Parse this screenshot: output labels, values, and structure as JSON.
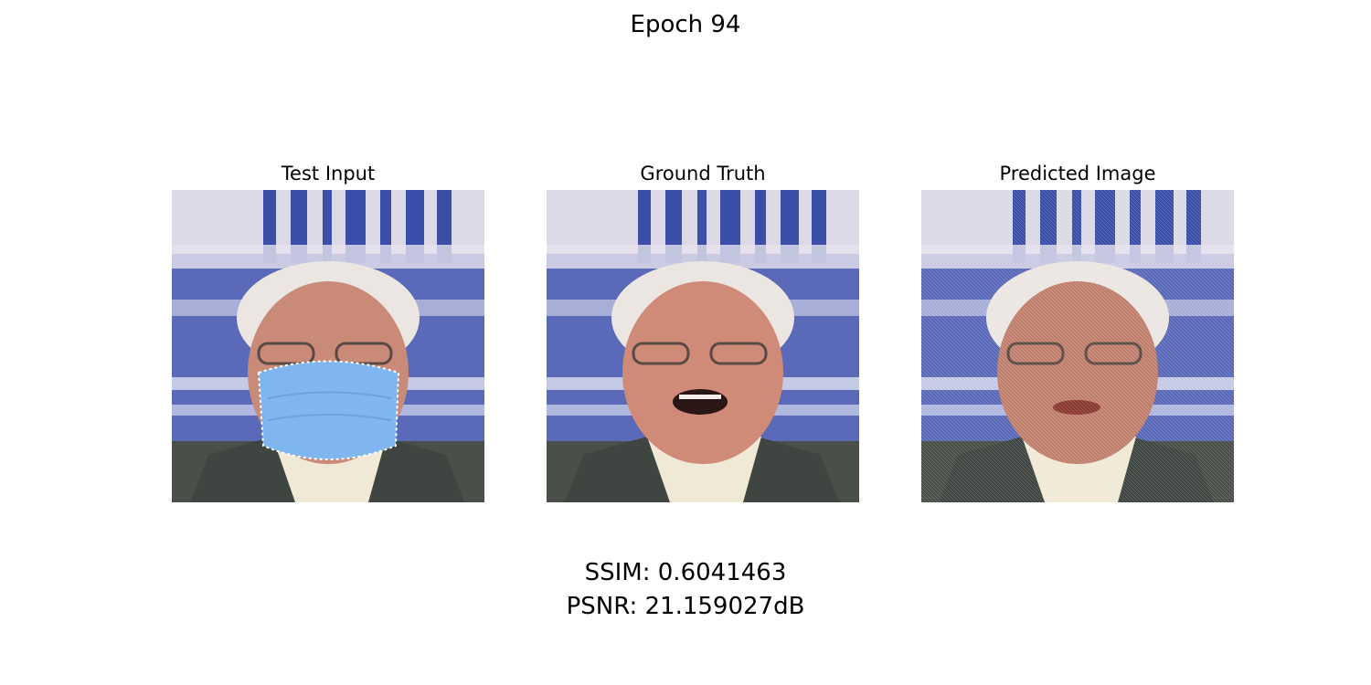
{
  "figure": {
    "title": "Epoch 94"
  },
  "panels": [
    {
      "title": "Test Input"
    },
    {
      "title": "Ground Truth"
    },
    {
      "title": "Predicted Image"
    }
  ],
  "metrics": {
    "ssim_text": "SSIM: 0.6041463",
    "psnr_text": "PSNR: 21.159027dB"
  },
  "colors": {
    "background_blue": "#4b5fb3",
    "background_light": "#dcd8e6",
    "mask_blue": "#7fb6f0",
    "skin": "#c98a78",
    "hair": "#e8e3df",
    "jacket": "#3f4540",
    "shirt": "#efe9d6"
  }
}
